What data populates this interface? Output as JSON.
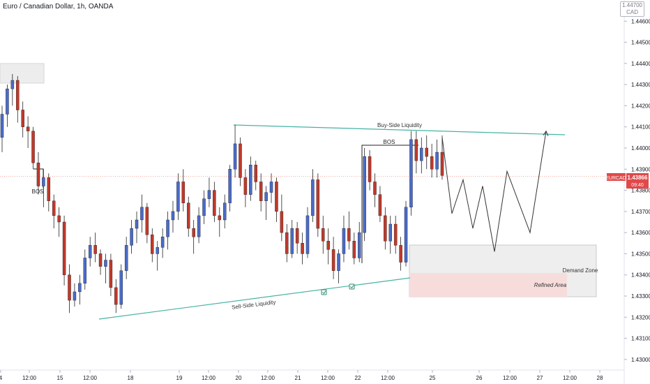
{
  "header": {
    "symbol_title": "Euro / Canadian Dollar, 1h, OANDA"
  },
  "currency_badge": {
    "top": "1.44700",
    "unit": "CAD"
  },
  "price_tag": {
    "symbol": "EURCAD",
    "price": "1.43866",
    "countdown": "09:40"
  },
  "colors": {
    "up": "#4a6bc9",
    "down": "#c0392b",
    "wick": "#222222",
    "liquidity_line": "#45b3a3",
    "current_price_line": "#f4a69b",
    "demand_zone_fill": "#eeeeef",
    "refined_area_fill": "#f7dcdc"
  },
  "chart_data": {
    "type": "candlestick",
    "symbol": "EURCAD",
    "timeframe": "1h",
    "ylim": [
      1.4295,
      1.447
    ],
    "y_ticks": [
      "1.44600",
      "1.44500",
      "1.44400",
      "1.44300",
      "1.44200",
      "1.44100",
      "1.44000",
      "1.43900",
      "1.43800",
      "1.43700",
      "1.43600",
      "1.43500",
      "1.43400",
      "1.43300",
      "1.43200",
      "1.43100",
      "1.43000"
    ],
    "x_ticks": [
      "4",
      "12:00",
      "15",
      "12:00",
      "18",
      "19",
      "12:00",
      "20",
      "12:00",
      "21",
      "12:00",
      "22",
      "12:00",
      "25",
      "26",
      "12:00",
      "27",
      "12:00",
      "28"
    ],
    "current_price": 1.43866,
    "candles": [
      [
        1.4405,
        1.442,
        1.4398,
        1.4416
      ],
      [
        1.4416,
        1.443,
        1.441,
        1.4428
      ],
      [
        1.4428,
        1.4435,
        1.442,
        1.4432
      ],
      [
        1.4432,
        1.4434,
        1.4412,
        1.4418
      ],
      [
        1.4418,
        1.4422,
        1.4405,
        1.441
      ],
      [
        1.441,
        1.4415,
        1.44,
        1.4408
      ],
      [
        1.4408,
        1.441,
        1.439,
        1.4393
      ],
      [
        1.4393,
        1.4398,
        1.4378,
        1.4382
      ],
      [
        1.4382,
        1.439,
        1.4372,
        1.4386
      ],
      [
        1.4386,
        1.4388,
        1.437,
        1.4375
      ],
      [
        1.4375,
        1.4378,
        1.4362,
        1.4368
      ],
      [
        1.4368,
        1.4372,
        1.4358,
        1.4365
      ],
      [
        1.4365,
        1.4368,
        1.4335,
        1.434
      ],
      [
        1.434,
        1.4345,
        1.4322,
        1.4328
      ],
      [
        1.4328,
        1.4336,
        1.4325,
        1.4332
      ],
      [
        1.4332,
        1.434,
        1.4326,
        1.4336
      ],
      [
        1.4336,
        1.4352,
        1.4333,
        1.4348
      ],
      [
        1.4348,
        1.4358,
        1.4344,
        1.4354
      ],
      [
        1.4354,
        1.436,
        1.4346,
        1.435
      ],
      [
        1.435,
        1.4352,
        1.434,
        1.4344
      ],
      [
        1.4344,
        1.435,
        1.4336,
        1.4347
      ],
      [
        1.4347,
        1.435,
        1.433,
        1.4334
      ],
      [
        1.4334,
        1.4338,
        1.4322,
        1.4326
      ],
      [
        1.4326,
        1.4345,
        1.4324,
        1.4342
      ],
      [
        1.4342,
        1.4358,
        1.4338,
        1.4354
      ],
      [
        1.4354,
        1.4366,
        1.435,
        1.4362
      ],
      [
        1.4362,
        1.437,
        1.4355,
        1.4366
      ],
      [
        1.4366,
        1.4378,
        1.436,
        1.4372
      ],
      [
        1.4372,
        1.4374,
        1.4355,
        1.4359
      ],
      [
        1.4359,
        1.4362,
        1.4346,
        1.435
      ],
      [
        1.435,
        1.4356,
        1.4342,
        1.4353
      ],
      [
        1.4353,
        1.4362,
        1.4348,
        1.4358
      ],
      [
        1.4358,
        1.437,
        1.4352,
        1.4366
      ],
      [
        1.4366,
        1.4375,
        1.436,
        1.437
      ],
      [
        1.437,
        1.4388,
        1.4366,
        1.4384
      ],
      [
        1.4384,
        1.439,
        1.437,
        1.4374
      ],
      [
        1.4374,
        1.4377,
        1.4358,
        1.4362
      ],
      [
        1.4362,
        1.4366,
        1.435,
        1.4358
      ],
      [
        1.4358,
        1.4372,
        1.4355,
        1.4368
      ],
      [
        1.4368,
        1.438,
        1.4364,
        1.4376
      ],
      [
        1.4376,
        1.4386,
        1.4372,
        1.438
      ],
      [
        1.438,
        1.4384,
        1.4365,
        1.4368
      ],
      [
        1.4368,
        1.4372,
        1.4358,
        1.4366
      ],
      [
        1.4366,
        1.4378,
        1.4362,
        1.4374
      ],
      [
        1.4374,
        1.4392,
        1.437,
        1.439
      ],
      [
        1.439,
        1.4411,
        1.4386,
        1.4402
      ],
      [
        1.4402,
        1.4405,
        1.4382,
        1.4386
      ],
      [
        1.4386,
        1.439,
        1.4372,
        1.4378
      ],
      [
        1.4378,
        1.4396,
        1.4375,
        1.4392
      ],
      [
        1.4392,
        1.4394,
        1.438,
        1.4384
      ],
      [
        1.4384,
        1.4388,
        1.437,
        1.4375
      ],
      [
        1.4375,
        1.4382,
        1.4366,
        1.4379
      ],
      [
        1.4379,
        1.4388,
        1.4374,
        1.4384
      ],
      [
        1.4384,
        1.4386,
        1.4365,
        1.437
      ],
      [
        1.437,
        1.4378,
        1.4356,
        1.436
      ],
      [
        1.436,
        1.4364,
        1.4346,
        1.435
      ],
      [
        1.435,
        1.4366,
        1.4348,
        1.4362
      ],
      [
        1.4362,
        1.4365,
        1.435,
        1.4355
      ],
      [
        1.4355,
        1.436,
        1.4345,
        1.435
      ],
      [
        1.435,
        1.4372,
        1.4348,
        1.4368
      ],
      [
        1.4368,
        1.439,
        1.4365,
        1.4385
      ],
      [
        1.4385,
        1.4388,
        1.4358,
        1.4362
      ],
      [
        1.4362,
        1.4368,
        1.435,
        1.4356
      ],
      [
        1.4356,
        1.4362,
        1.4345,
        1.4352
      ],
      [
        1.4352,
        1.4358,
        1.4338,
        1.4342
      ],
      [
        1.4342,
        1.4352,
        1.4336,
        1.435
      ],
      [
        1.435,
        1.4368,
        1.4346,
        1.4362
      ],
      [
        1.4362,
        1.437,
        1.4352,
        1.4356
      ],
      [
        1.4356,
        1.436,
        1.4345,
        1.4348
      ],
      [
        1.4348,
        1.4365,
        1.4346,
        1.436
      ],
      [
        1.436,
        1.44,
        1.4356,
        1.4396
      ],
      [
        1.4396,
        1.4399,
        1.438,
        1.4384
      ],
      [
        1.4384,
        1.4388,
        1.4372,
        1.4378
      ],
      [
        1.4378,
        1.4382,
        1.4365,
        1.4368
      ],
      [
        1.4368,
        1.4372,
        1.4352,
        1.4356
      ],
      [
        1.4356,
        1.4368,
        1.435,
        1.4364
      ],
      [
        1.4364,
        1.4368,
        1.435,
        1.4354
      ],
      [
        1.4354,
        1.4358,
        1.4342,
        1.4346
      ],
      [
        1.4346,
        1.4375,
        1.4344,
        1.4372
      ],
      [
        1.4372,
        1.4408,
        1.4368,
        1.4404
      ],
      [
        1.4404,
        1.4408,
        1.4388,
        1.4394
      ],
      [
        1.4394,
        1.4405,
        1.4388,
        1.44
      ],
      [
        1.44,
        1.4406,
        1.439,
        1.4396
      ],
      [
        1.4396,
        1.4402,
        1.4386,
        1.439
      ],
      [
        1.439,
        1.4404,
        1.4386,
        1.4398
      ],
      [
        1.4398,
        1.4406,
        1.4385,
        1.4387
      ]
    ],
    "projection": [
      1.4405,
      1.4369,
      1.4385,
      1.4362,
      1.4382,
      1.4351,
      1.4389,
      1.436,
      1.4408
    ],
    "annotations": [
      {
        "label": "Buy-Side Liquidity"
      },
      {
        "label": "Sell-Side Liquidity"
      },
      {
        "label": "BOS"
      },
      {
        "label": "BOS"
      },
      {
        "label": "Demand Zone"
      },
      {
        "label": "Refined Area"
      }
    ]
  }
}
